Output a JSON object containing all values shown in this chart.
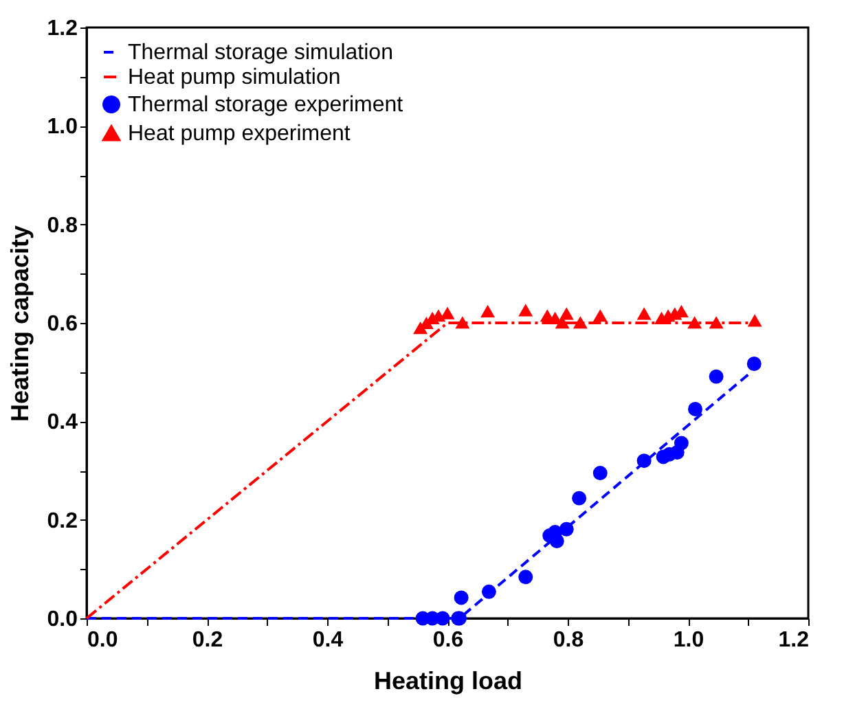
{
  "chart_data": {
    "type": "scatter",
    "xlabel": "Heating load",
    "ylabel": "Heating capacity",
    "xlim": [
      0,
      1.2
    ],
    "ylim": [
      0,
      1.2
    ],
    "xticks": [
      {
        "value": 0,
        "label": "0.0"
      },
      {
        "value": 0.1,
        "label": null
      },
      0.2,
      {
        "value": 0.3,
        "label": null
      },
      0.4,
      {
        "value": 0.5,
        "label": null
      },
      0.6,
      {
        "value": 0.7,
        "label": null
      },
      0.8,
      {
        "value": 0.9,
        "label": null
      },
      {
        "value": 1,
        "label": "1.0"
      },
      {
        "value": 1.1,
        "label": null
      },
      1.2
    ],
    "yticks": [
      {
        "value": 0,
        "label": "0.0"
      },
      {
        "value": 0.1,
        "label": null
      },
      0.2,
      {
        "value": 0.3,
        "label": null
      },
      0.4,
      {
        "value": 0.5,
        "label": null
      },
      0.6,
      {
        "value": 0.7,
        "label": null
      },
      0.8,
      {
        "value": 0.9,
        "label": null
      },
      {
        "value": 1,
        "label": "1.0"
      },
      {
        "value": 1.1,
        "label": null
      },
      1.2
    ],
    "grid": false,
    "legend": "top left",
    "series": [
      {
        "name": "Thermal storage simulation",
        "type": "line",
        "line_style": "dashed",
        "marker": "none",
        "color": "#0000ff",
        "x": [
          0,
          0.62,
          1.1
        ],
        "values": [
          0,
          0,
          0.495
        ]
      },
      {
        "name": "Heat pump simulation",
        "type": "line",
        "line_style": "dashdot",
        "marker": "none",
        "color": "#ff0000",
        "x": [
          0,
          0.6,
          1.1
        ],
        "values": [
          0,
          0.6,
          0.6
        ]
      },
      {
        "name": "Thermal storage experiment",
        "marker": "circle",
        "color": "#0000ff",
        "x": [
          0.559,
          0.575,
          0.592,
          0.618,
          0.62,
          0.623,
          0.669,
          0.73,
          0.77,
          0.782,
          0.779,
          0.798,
          0.819,
          0.854,
          0.927,
          0.959,
          0.969,
          0.982,
          0.989,
          1.012,
          1.047,
          1.11
        ],
        "values": [
          0,
          0,
          0,
          0,
          0,
          0.042,
          0.054,
          0.084,
          0.168,
          0.157,
          0.175,
          0.181,
          0.244,
          0.295,
          0.32,
          0.328,
          0.333,
          0.337,
          0.356,
          0.425,
          0.491,
          0.517
        ]
      },
      {
        "name": "Heat pump experiment",
        "marker": "triangle",
        "color": "#ff0000",
        "x": [
          0.555,
          0.565,
          0.575,
          0.585,
          0.6,
          0.625,
          0.667,
          0.73,
          0.766,
          0.779,
          0.791,
          0.798,
          0.821,
          0.854,
          0.927,
          0.956,
          0.967,
          0.978,
          0.989,
          1.011,
          1.047,
          1.111
        ],
        "values": [
          0.59,
          0.6,
          0.61,
          0.615,
          0.62,
          0.601,
          0.624,
          0.626,
          0.615,
          0.61,
          0.601,
          0.619,
          0.601,
          0.615,
          0.619,
          0.61,
          0.615,
          0.619,
          0.624,
          0.601,
          0.601,
          0.605
        ]
      }
    ]
  }
}
